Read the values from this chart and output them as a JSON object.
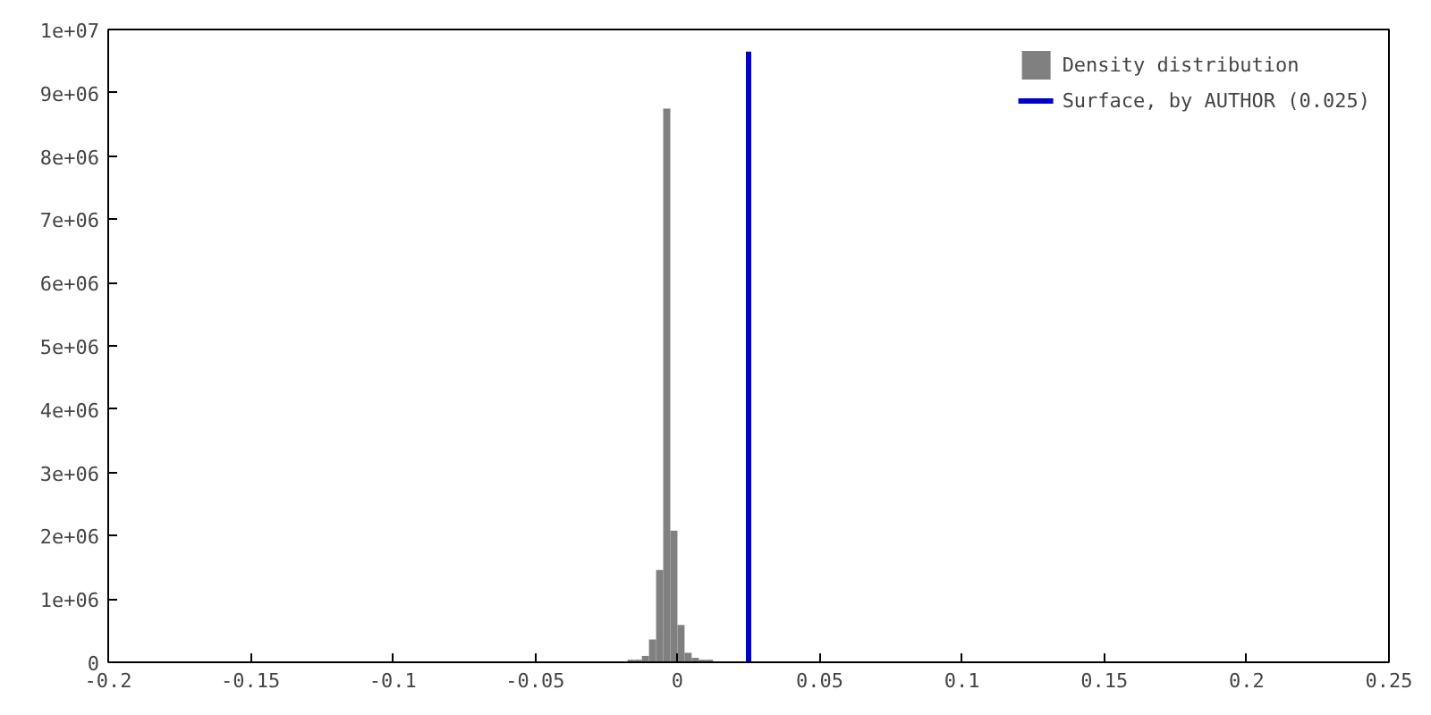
{
  "chart_data": {
    "type": "histogram",
    "bins": [
      -0.0175,
      -0.015,
      -0.0125,
      -0.01,
      -0.0075,
      -0.005,
      -0.0025,
      0,
      0.0025,
      0.005,
      0.0075,
      0.01,
      0.0125
    ],
    "series": [
      {
        "name": "Density distribution",
        "color": "#808080",
        "values": [
          40000,
          40000,
          100000,
          360000,
          1460000,
          8750000,
          2080000,
          590000,
          150000,
          70000,
          40000,
          40000
        ]
      },
      {
        "name": "Surface, by AUTHOR (0.025)",
        "type": "line",
        "color": "#0000cc",
        "x": [
          0.025,
          0.025
        ],
        "values": [
          0,
          9650000
        ]
      }
    ],
    "xlim": [
      -0.2,
      0.25
    ],
    "xticks": [
      -0.2,
      -0.15,
      -0.1,
      -0.05,
      0,
      0.05,
      0.1,
      0.15,
      0.2,
      0.25
    ],
    "ylim": [
      0,
      10000000
    ],
    "yticks": [
      {
        "value": 0,
        "label": "0"
      },
      {
        "value": 1000000,
        "label": "1e+06"
      },
      {
        "value": 2000000,
        "label": "2e+06"
      },
      {
        "value": 3000000,
        "label": "3e+06"
      },
      {
        "value": 4000000,
        "label": "4e+06"
      },
      {
        "value": 5000000,
        "label": "5e+06"
      },
      {
        "value": 6000000,
        "label": "6e+06"
      },
      {
        "value": 7000000,
        "label": "7e+06"
      },
      {
        "value": 8000000,
        "label": "8e+06"
      },
      {
        "value": 9000000,
        "label": "9e+06"
      },
      {
        "value": 10000000,
        "label": "1e+07"
      }
    ],
    "legend": "top right",
    "grid": false
  }
}
